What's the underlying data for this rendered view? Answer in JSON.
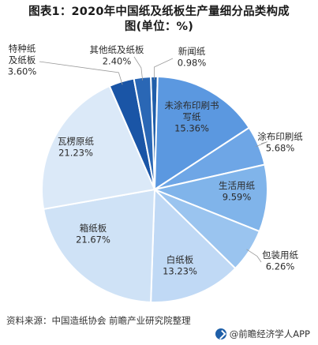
{
  "chart_data": {
    "type": "pie",
    "title": "图表1：2020年中国纸及纸板生产量细分品类构成图(单位：%)",
    "title_lines": [
      "图表1：2020年中国纸及纸板生产量细分品类构成",
      "图(单位：%)"
    ],
    "slices": [
      {
        "label": "新闻纸",
        "value": 0.98,
        "value_text": "0.98%",
        "color": "#1f5eaa"
      },
      {
        "label": "未涂布印刷书写纸",
        "label_lines": [
          "未涂布印刷书",
          "写纸"
        ],
        "value": 15.36,
        "value_text": "15.36%",
        "color": "#5b98e0"
      },
      {
        "label": "涂布印刷纸",
        "value": 5.68,
        "value_text": "5.68%",
        "color": "#6ea6e6"
      },
      {
        "label": "生活用纸",
        "value": 9.59,
        "value_text": "9.59%",
        "color": "#80b4ea"
      },
      {
        "label": "包装用纸",
        "value": 6.26,
        "value_text": "6.26%",
        "color": "#9ac4ef"
      },
      {
        "label": "白纸板",
        "value": 13.23,
        "value_text": "13.23%",
        "color": "#c0d9f5"
      },
      {
        "label": "箱纸板",
        "value": 21.67,
        "value_text": "21.67%",
        "color": "#cfe2f6"
      },
      {
        "label": "瓦楞原纸",
        "value": 21.23,
        "value_text": "21.23%",
        "color": "#dbe9f8"
      },
      {
        "label": "特种纸及纸板",
        "label_lines": [
          "特种纸",
          "及纸板"
        ],
        "value": 3.6,
        "value_text": "3.60%",
        "color": "#1a55a6"
      },
      {
        "label": "其他纸及纸板",
        "value": 2.4,
        "value_text": "2.40%",
        "color": "#2a67b5"
      }
    ]
  },
  "footer": {
    "source": "资料来源：中国造纸协会 前瞻产业研究院整理",
    "brand": "@前瞻经济学人APP"
  },
  "background_mark": "前瞻"
}
